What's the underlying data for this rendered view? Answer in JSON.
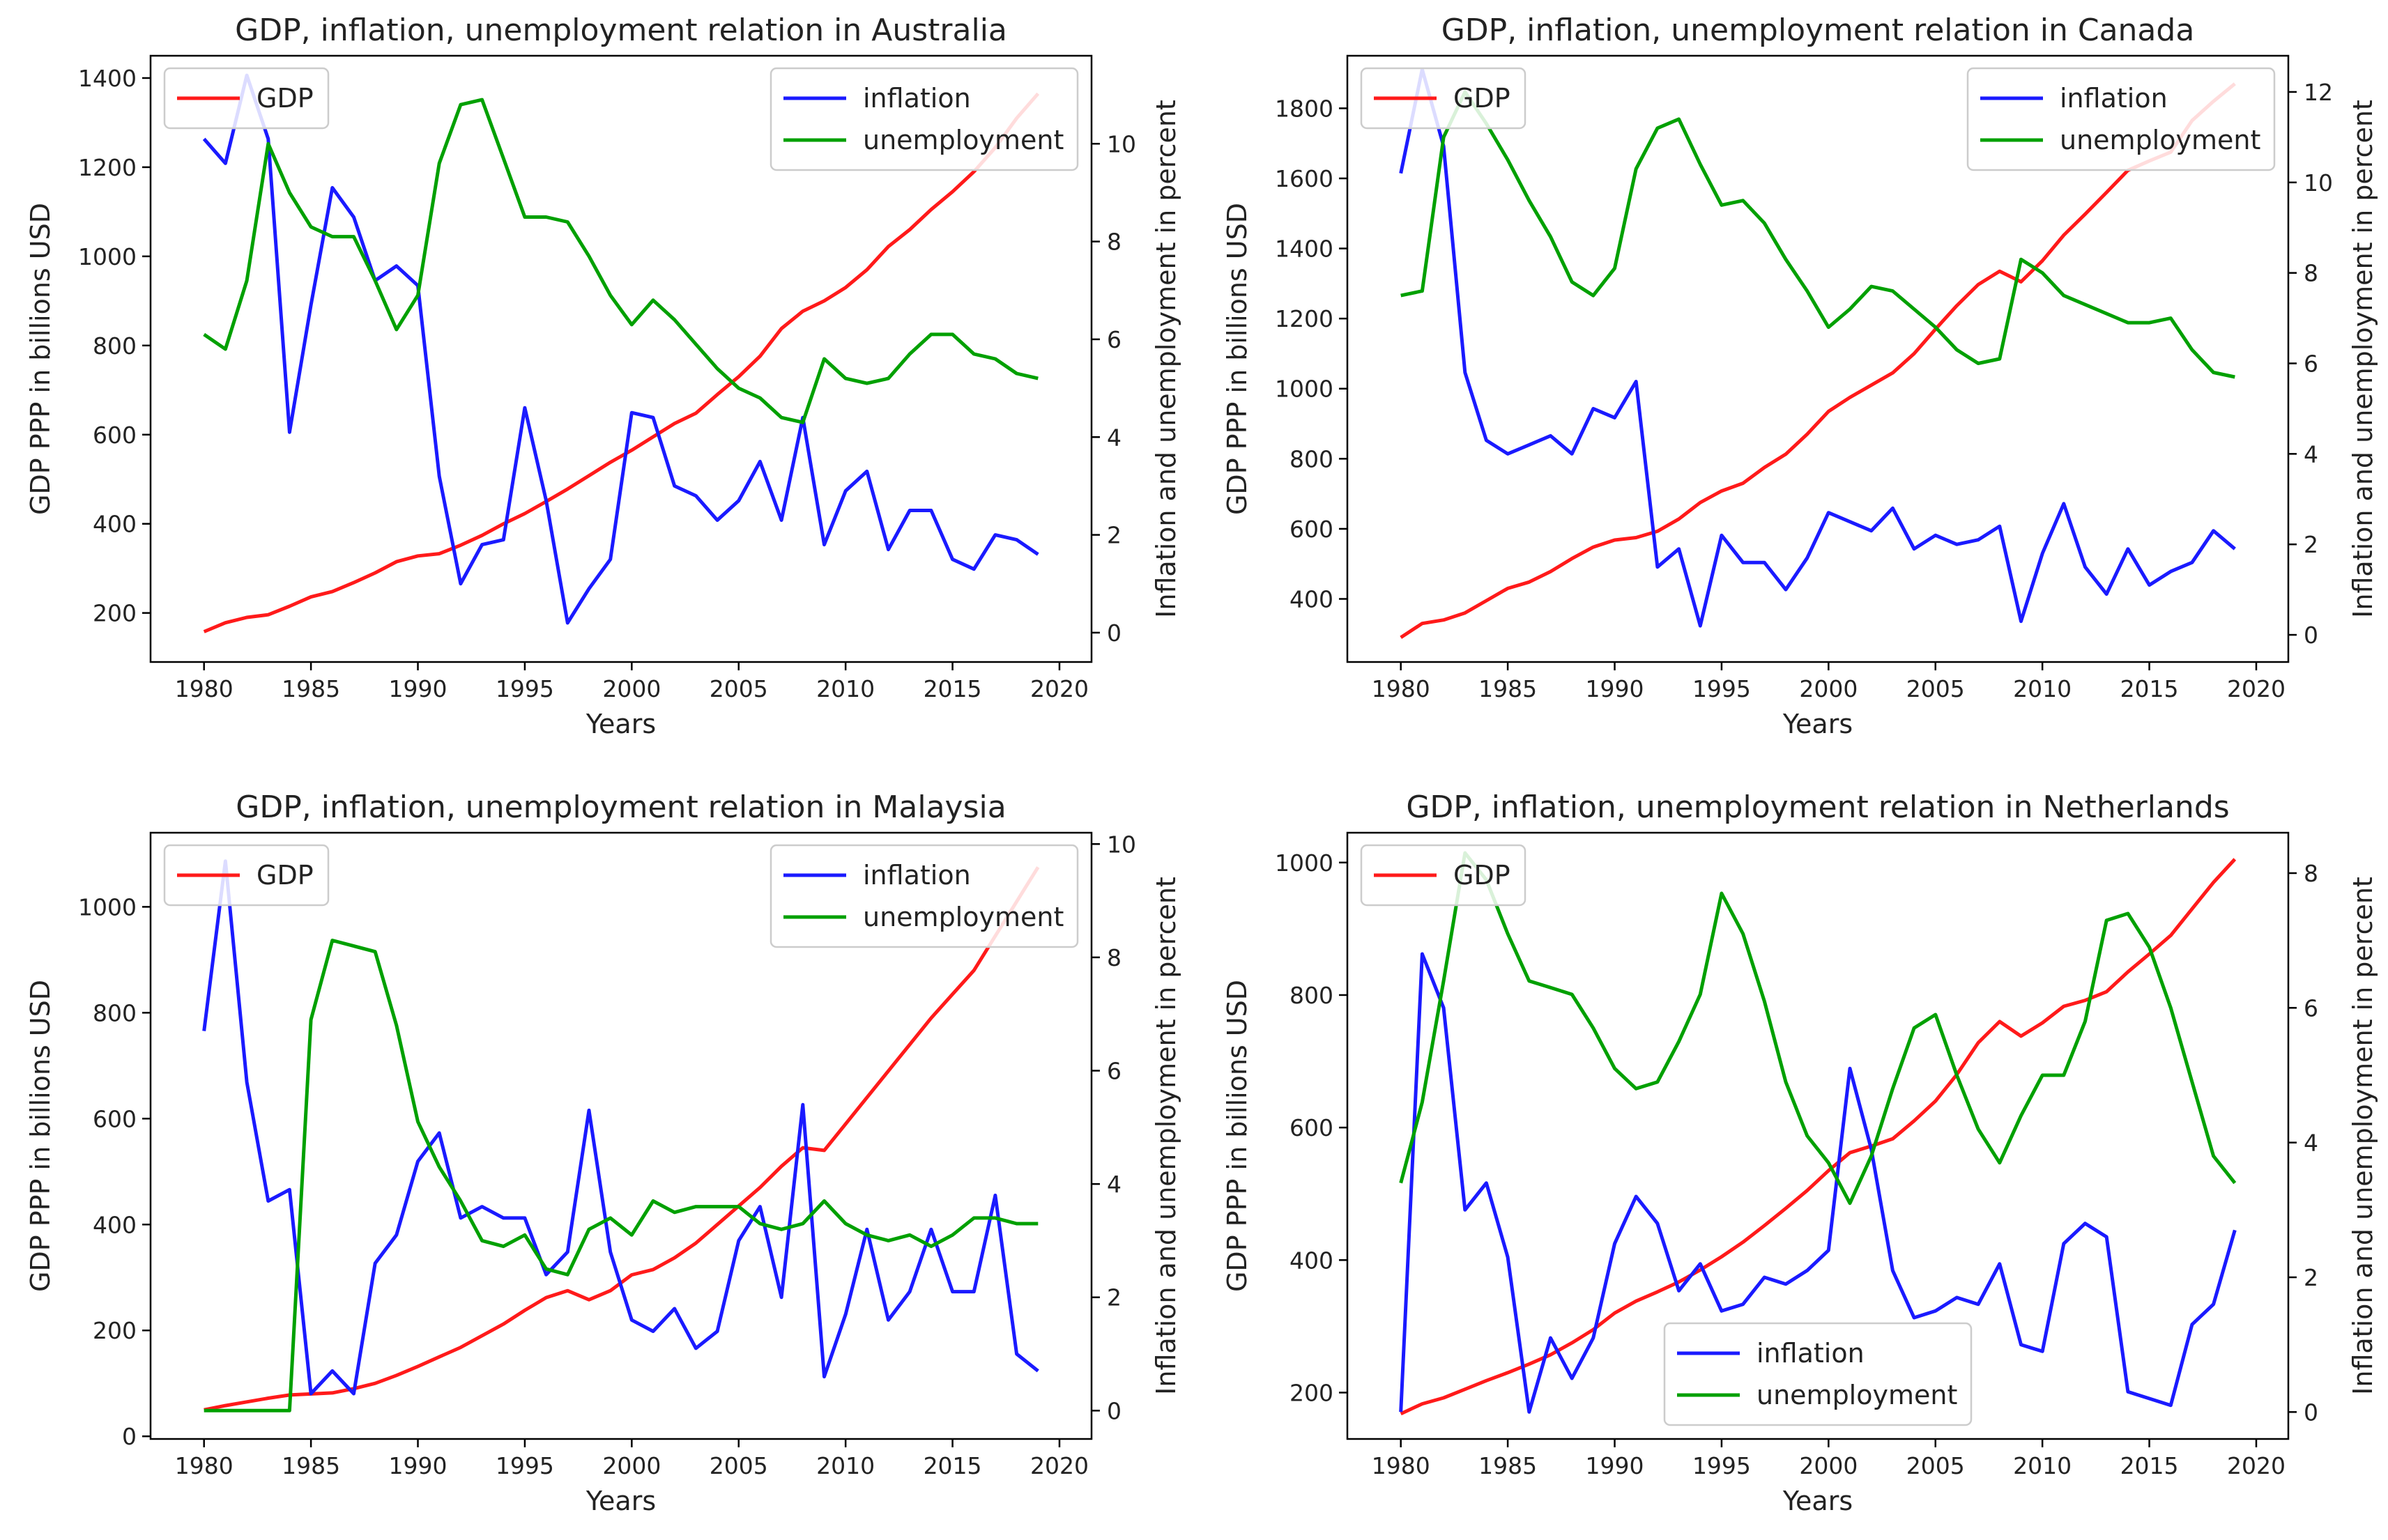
{
  "chart_data": [
    {
      "type": "line",
      "title": "GDP, inflation, unemployment relation in Australia",
      "xlabel": "Years",
      "ylabel": "GDP PPP in billions USD",
      "y2label": "Inflation and unemployment in percent",
      "xlim": [
        1977.5,
        2021.5
      ],
      "ylim": [
        90,
        1450
      ],
      "y2lim": [
        -0.6,
        11.8
      ],
      "xticks": [
        1980,
        1985,
        1990,
        1995,
        2000,
        2005,
        2010,
        2015,
        2020
      ],
      "yticks": [
        200,
        400,
        600,
        800,
        1000,
        1200,
        1400
      ],
      "y2ticks": [
        0,
        2,
        4,
        6,
        8,
        10
      ],
      "x": [
        1980,
        1981,
        1982,
        1983,
        1984,
        1985,
        1986,
        1987,
        1988,
        1989,
        1990,
        1991,
        1992,
        1993,
        1994,
        1995,
        1996,
        1997,
        1998,
        1999,
        2000,
        2001,
        2002,
        2003,
        2004,
        2005,
        2006,
        2007,
        2008,
        2009,
        2010,
        2011,
        2012,
        2013,
        2014,
        2015,
        2016,
        2017,
        2018,
        2019
      ],
      "series": [
        {
          "name": "GDP",
          "axis": "left",
          "color": "#ff1a1a",
          "values": [
            158,
            178,
            190,
            196,
            215,
            236,
            248,
            268,
            290,
            315,
            328,
            333,
            352,
            374,
            400,
            423,
            450,
            478,
            508,
            538,
            565,
            595,
            625,
            648,
            690,
            730,
            776,
            838,
            877,
            900,
            930,
            970,
            1022,
            1060,
            1105,
            1145,
            1190,
            1244,
            1310,
            1365
          ]
        },
        {
          "name": "inflation",
          "axis": "right",
          "color": "#1a1aff",
          "values": [
            10.1,
            9.6,
            11.4,
            10.1,
            4.1,
            6.7,
            9.1,
            8.5,
            7.2,
            7.5,
            7.1,
            3.2,
            1.0,
            1.8,
            1.9,
            4.6,
            2.7,
            0.2,
            0.9,
            1.5,
            4.5,
            4.4,
            3.0,
            2.8,
            2.3,
            2.7,
            3.5,
            2.3,
            4.4,
            1.8,
            2.9,
            3.3,
            1.7,
            2.5,
            2.5,
            1.5,
            1.3,
            2.0,
            1.9,
            1.6
          ]
        },
        {
          "name": "unemployment",
          "axis": "right",
          "color": "#00a000",
          "values": [
            6.1,
            5.8,
            7.2,
            10.0,
            9.0,
            8.3,
            8.1,
            8.1,
            7.2,
            6.2,
            6.9,
            9.6,
            10.8,
            10.9,
            9.7,
            8.5,
            8.5,
            8.4,
            7.7,
            6.9,
            6.3,
            6.8,
            6.4,
            5.9,
            5.4,
            5.0,
            4.8,
            4.4,
            4.3,
            5.6,
            5.2,
            5.1,
            5.2,
            5.7,
            6.1,
            6.1,
            5.7,
            5.6,
            5.3,
            5.2
          ]
        }
      ],
      "legends": [
        {
          "position": "upper left",
          "entries": [
            "GDP"
          ]
        },
        {
          "position": "upper right",
          "entries": [
            "inflation",
            "unemployment"
          ]
        }
      ]
    },
    {
      "type": "line",
      "title": "GDP, inflation, unemployment relation in Canada",
      "xlabel": "Years",
      "ylabel": "GDP PPP in billions USD",
      "y2label": "Inflation and unemployment in percent",
      "xlim": [
        1977.5,
        2021.5
      ],
      "ylim": [
        220,
        1950
      ],
      "y2lim": [
        -0.6,
        12.8
      ],
      "xticks": [
        1980,
        1985,
        1990,
        1995,
        2000,
        2005,
        2010,
        2015,
        2020
      ],
      "yticks": [
        400,
        600,
        800,
        1000,
        1200,
        1400,
        1600,
        1800
      ],
      "y2ticks": [
        0,
        2,
        4,
        6,
        8,
        10,
        12
      ],
      "x": [
        1980,
        1981,
        1982,
        1983,
        1984,
        1985,
        1986,
        1987,
        1988,
        1989,
        1990,
        1991,
        1992,
        1993,
        1994,
        1995,
        1996,
        1997,
        1998,
        1999,
        2000,
        2001,
        2002,
        2003,
        2004,
        2005,
        2006,
        2007,
        2008,
        2009,
        2010,
        2011,
        2012,
        2013,
        2014,
        2015,
        2016,
        2017,
        2018,
        2019
      ],
      "series": [
        {
          "name": "GDP",
          "axis": "left",
          "color": "#ff1a1a",
          "values": [
            290,
            330,
            340,
            360,
            395,
            430,
            448,
            478,
            515,
            548,
            568,
            575,
            593,
            628,
            675,
            708,
            730,
            775,
            813,
            870,
            935,
            975,
            1010,
            1045,
            1100,
            1170,
            1237,
            1297,
            1335,
            1305,
            1365,
            1438,
            1498,
            1560,
            1623,
            1650,
            1675,
            1765,
            1820,
            1870
          ]
        },
        {
          "name": "inflation",
          "axis": "right",
          "color": "#1a1aff",
          "values": [
            10.2,
            12.5,
            10.8,
            5.8,
            4.3,
            4.0,
            4.2,
            4.4,
            4.0,
            5.0,
            4.8,
            5.6,
            1.5,
            1.9,
            0.2,
            2.2,
            1.6,
            1.6,
            1.0,
            1.7,
            2.7,
            2.5,
            2.3,
            2.8,
            1.9,
            2.2,
            2.0,
            2.1,
            2.4,
            0.3,
            1.8,
            2.9,
            1.5,
            0.9,
            1.9,
            1.1,
            1.4,
            1.6,
            2.3,
            1.9
          ]
        },
        {
          "name": "unemployment",
          "axis": "right",
          "color": "#00a000",
          "values": [
            7.5,
            7.6,
            11.0,
            12.0,
            11.3,
            10.5,
            9.6,
            8.8,
            7.8,
            7.5,
            8.1,
            10.3,
            11.2,
            11.4,
            10.4,
            9.5,
            9.6,
            9.1,
            8.3,
            7.6,
            6.8,
            7.2,
            7.7,
            7.6,
            7.2,
            6.8,
            6.3,
            6.0,
            6.1,
            8.3,
            8.0,
            7.5,
            7.3,
            7.1,
            6.9,
            6.9,
            7.0,
            6.3,
            5.8,
            5.7
          ]
        }
      ],
      "legends": [
        {
          "position": "upper left",
          "entries": [
            "GDP"
          ]
        },
        {
          "position": "upper right",
          "entries": [
            "inflation",
            "unemployment"
          ]
        }
      ]
    },
    {
      "type": "line",
      "title": "GDP, inflation, unemployment relation in Malaysia",
      "xlabel": "Years",
      "ylabel": "GDP PPP in billions USD",
      "y2label": "Inflation and unemployment in percent",
      "xlim": [
        1977.5,
        2021.5
      ],
      "ylim": [
        -5,
        1140
      ],
      "y2lim": [
        -0.5,
        10.2
      ],
      "xticks": [
        1980,
        1985,
        1990,
        1995,
        2000,
        2005,
        2010,
        2015,
        2020
      ],
      "yticks": [
        0,
        200,
        400,
        600,
        800,
        1000
      ],
      "y2ticks": [
        0,
        2,
        4,
        6,
        8,
        10
      ],
      "x": [
        1980,
        1981,
        1982,
        1983,
        1984,
        1985,
        1986,
        1987,
        1988,
        1989,
        1990,
        1991,
        1992,
        1993,
        1994,
        1995,
        1996,
        1997,
        1998,
        1999,
        2000,
        2001,
        2002,
        2003,
        2004,
        2005,
        2006,
        2007,
        2008,
        2009,
        2010,
        2011,
        2012,
        2013,
        2014,
        2015,
        2016,
        2017,
        2018,
        2019
      ],
      "series": [
        {
          "name": "GDP",
          "axis": "left",
          "color": "#ff1a1a",
          "values": [
            50,
            58,
            65,
            72,
            78,
            80,
            82,
            90,
            100,
            115,
            132,
            150,
            168,
            190,
            212,
            238,
            262,
            275,
            258,
            275,
            305,
            315,
            337,
            365,
            400,
            435,
            470,
            510,
            545,
            540,
            590,
            640,
            690,
            740,
            790,
            835,
            880,
            945,
            1010,
            1075
          ]
        },
        {
          "name": "inflation",
          "axis": "right",
          "color": "#1a1aff",
          "values": [
            6.7,
            9.7,
            5.8,
            3.7,
            3.9,
            0.3,
            0.7,
            0.3,
            2.6,
            3.1,
            4.4,
            4.9,
            3.4,
            3.6,
            3.4,
            3.4,
            2.4,
            2.8,
            5.3,
            2.8,
            1.6,
            1.4,
            1.8,
            1.1,
            1.4,
            3.0,
            3.6,
            2.0,
            5.4,
            0.6,
            1.7,
            3.2,
            1.6,
            2.1,
            3.2,
            2.1,
            2.1,
            3.8,
            1.0,
            0.7
          ]
        },
        {
          "name": "unemployment",
          "axis": "right",
          "color": "#00a000",
          "values": [
            0,
            0,
            0,
            0,
            0,
            6.9,
            8.3,
            8.2,
            8.1,
            6.8,
            5.1,
            4.3,
            3.7,
            3.0,
            2.9,
            3.1,
            2.5,
            2.4,
            3.2,
            3.4,
            3.1,
            3.7,
            3.5,
            3.6,
            3.6,
            3.6,
            3.3,
            3.2,
            3.3,
            3.7,
            3.3,
            3.1,
            3.0,
            3.1,
            2.9,
            3.1,
            3.4,
            3.4,
            3.3,
            3.3
          ]
        }
      ],
      "legends": [
        {
          "position": "upper left",
          "entries": [
            "GDP"
          ]
        },
        {
          "position": "upper right",
          "entries": [
            "inflation",
            "unemployment"
          ]
        }
      ]
    },
    {
      "type": "line",
      "title": "GDP, inflation, unemployment relation in Netherlands",
      "xlabel": "Years",
      "ylabel": "GDP PPP in billions USD",
      "y2label": "Inflation and unemployment in percent",
      "xlim": [
        1977.5,
        2021.5
      ],
      "ylim": [
        130,
        1045
      ],
      "y2lim": [
        -0.4,
        8.6
      ],
      "xticks": [
        1980,
        1985,
        1990,
        1995,
        2000,
        2005,
        2010,
        2015,
        2020
      ],
      "yticks": [
        200,
        400,
        600,
        800,
        1000
      ],
      "y2ticks": [
        0,
        2,
        4,
        6,
        8
      ],
      "x": [
        1980,
        1981,
        1982,
        1983,
        1984,
        1985,
        1986,
        1987,
        1988,
        1989,
        1990,
        1991,
        1992,
        1993,
        1994,
        1995,
        1996,
        1997,
        1998,
        1999,
        2000,
        2001,
        2002,
        2003,
        2004,
        2005,
        2006,
        2007,
        2008,
        2009,
        2010,
        2011,
        2012,
        2013,
        2014,
        2015,
        2016,
        2017,
        2018,
        2019
      ],
      "series": [
        {
          "name": "GDP",
          "axis": "left",
          "color": "#ff1a1a",
          "values": [
            168,
            183,
            192,
            205,
            218,
            230,
            243,
            257,
            275,
            295,
            320,
            338,
            352,
            367,
            385,
            405,
            427,
            452,
            478,
            505,
            535,
            562,
            572,
            583,
            610,
            640,
            680,
            728,
            760,
            738,
            758,
            783,
            792,
            805,
            835,
            862,
            890,
            930,
            970,
            1005
          ]
        },
        {
          "name": "inflation",
          "axis": "right",
          "color": "#1a1aff",
          "values": [
            0,
            6.8,
            6.0,
            3.0,
            3.4,
            2.3,
            0,
            1.1,
            0.5,
            1.1,
            2.5,
            3.2,
            2.8,
            1.8,
            2.2,
            1.5,
            1.6,
            2.0,
            1.9,
            2.1,
            2.4,
            5.1,
            3.9,
            2.1,
            1.4,
            1.5,
            1.7,
            1.6,
            2.2,
            1.0,
            0.9,
            2.5,
            2.8,
            2.6,
            0.3,
            0.2,
            0.1,
            1.3,
            1.6,
            2.7
          ]
        },
        {
          "name": "unemployment",
          "axis": "right",
          "color": "#00a000",
          "values": [
            3.4,
            4.6,
            6.4,
            8.3,
            7.9,
            7.1,
            6.4,
            6.3,
            6.2,
            5.7,
            5.1,
            4.8,
            4.9,
            5.5,
            6.2,
            7.7,
            7.1,
            6.1,
            4.9,
            4.1,
            3.7,
            3.1,
            3.8,
            4.8,
            5.7,
            5.9,
            5.0,
            4.2,
            3.7,
            4.4,
            5.0,
            5.0,
            5.8,
            7.3,
            7.4,
            6.9,
            6.0,
            4.9,
            3.8,
            3.4
          ]
        }
      ],
      "legends": [
        {
          "position": "upper left",
          "entries": [
            "GDP"
          ]
        },
        {
          "position": "lower center",
          "entries": [
            "inflation",
            "unemployment"
          ]
        }
      ]
    }
  ]
}
